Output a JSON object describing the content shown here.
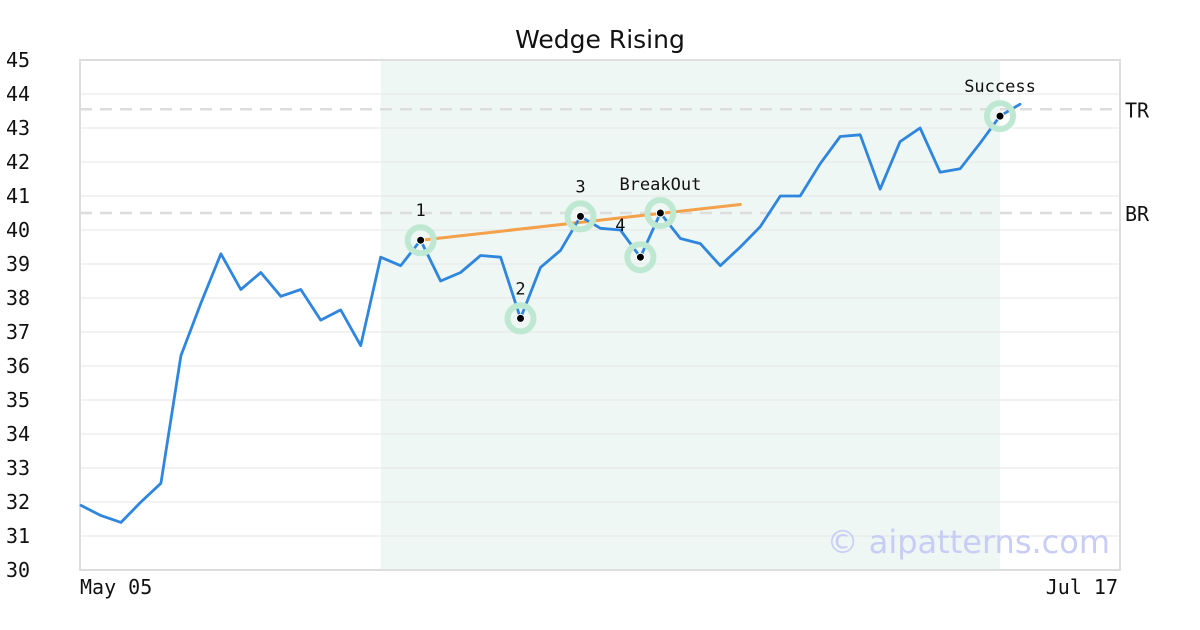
{
  "chart_data": {
    "type": "line",
    "title": "Wedge Rising",
    "xlabel": "",
    "ylabel": "",
    "ylim": [
      30,
      45
    ],
    "yticks": [
      30,
      31,
      32,
      33,
      34,
      35,
      36,
      37,
      38,
      39,
      40,
      41,
      42,
      43,
      44,
      45
    ],
    "x_tick_labels": [
      "May 05",
      "Jul 17"
    ],
    "grid": true,
    "colors": {
      "line": "#2e86de",
      "trendline": "#f5a04a",
      "highlight_band": "#eef7f3",
      "marker_halo": "#bfe8d2",
      "reference_line": "#dddddd",
      "watermark": "#c8cdf6"
    },
    "series": [
      {
        "values": [
          31.9,
          31.6,
          31.4,
          32.0,
          32.55,
          36.3,
          37.85,
          39.3,
          38.25,
          38.75,
          38.05,
          38.25,
          37.35,
          37.65,
          36.6,
          39.2,
          38.95,
          39.7,
          38.5,
          38.75,
          39.25,
          39.2,
          37.4,
          38.9,
          39.4,
          40.4,
          40.05,
          40.0,
          39.2,
          40.5,
          39.75,
          39.6,
          38.95,
          39.5,
          40.1,
          41.0,
          41.0,
          41.95,
          42.75,
          42.8,
          41.2,
          42.6,
          43.0,
          41.7,
          41.8,
          42.55,
          43.35,
          43.7
        ]
      }
    ],
    "highlight_region": {
      "x_start": 15,
      "x_end": 46
    },
    "trendline": {
      "from": {
        "x": 17,
        "y": 39.7
      },
      "to": {
        "x": 33,
        "y": 40.75
      }
    },
    "reference_lines": [
      {
        "label": "TR",
        "y": 43.55
      },
      {
        "label": "BR",
        "y": 40.5
      }
    ],
    "annotations": [
      {
        "label": "1",
        "x": 17,
        "y": 39.7
      },
      {
        "label": "2",
        "x": 22,
        "y": 37.4
      },
      {
        "label": "3",
        "x": 25,
        "y": 40.4
      },
      {
        "label": "4",
        "x": 28,
        "y": 39.2
      },
      {
        "label": "BreakOut",
        "x": 29,
        "y": 40.5
      },
      {
        "label": "Success",
        "x": 46,
        "y": 43.35
      }
    ]
  },
  "watermark": "© aipatterns.com"
}
